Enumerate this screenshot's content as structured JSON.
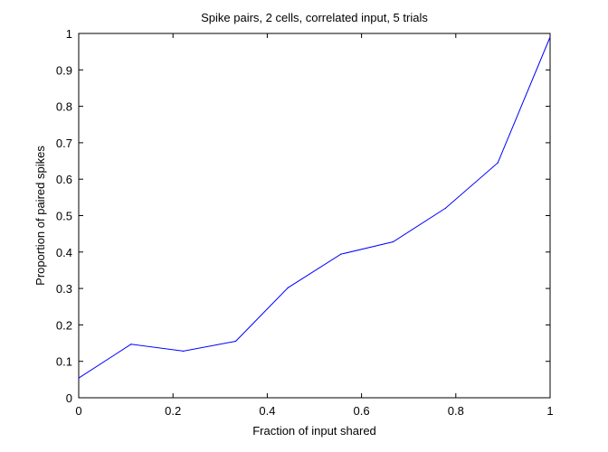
{
  "chart_data": {
    "type": "line",
    "title": "Spike pairs, 2 cells, correlated input, 5 trials",
    "xlabel": "Fraction of input shared",
    "ylabel": "Proportion of paired spikes",
    "xlim": [
      0,
      1
    ],
    "ylim": [
      0,
      1
    ],
    "xticks": [
      0,
      0.2,
      0.4,
      0.6,
      0.8,
      1
    ],
    "xtick_labels": [
      "0",
      "0.2",
      "0.4",
      "0.6",
      "0.8",
      "1"
    ],
    "yticks": [
      0,
      0.1,
      0.2,
      0.3,
      0.4,
      0.5,
      0.6,
      0.7,
      0.8,
      0.9,
      1
    ],
    "ytick_labels": [
      "0",
      "0.1",
      "0.2",
      "0.3",
      "0.4",
      "0.5",
      "0.6",
      "0.7",
      "0.8",
      "0.9",
      "1"
    ],
    "grid": false,
    "series": [
      {
        "color": "#0000ff",
        "x": [
          0,
          0.111,
          0.222,
          0.333,
          0.444,
          0.556,
          0.667,
          0.778,
          0.889,
          1
        ],
        "y": [
          0.054,
          0.147,
          0.128,
          0.155,
          0.302,
          0.394,
          0.428,
          0.52,
          0.645,
          0.99
        ]
      }
    ]
  }
}
